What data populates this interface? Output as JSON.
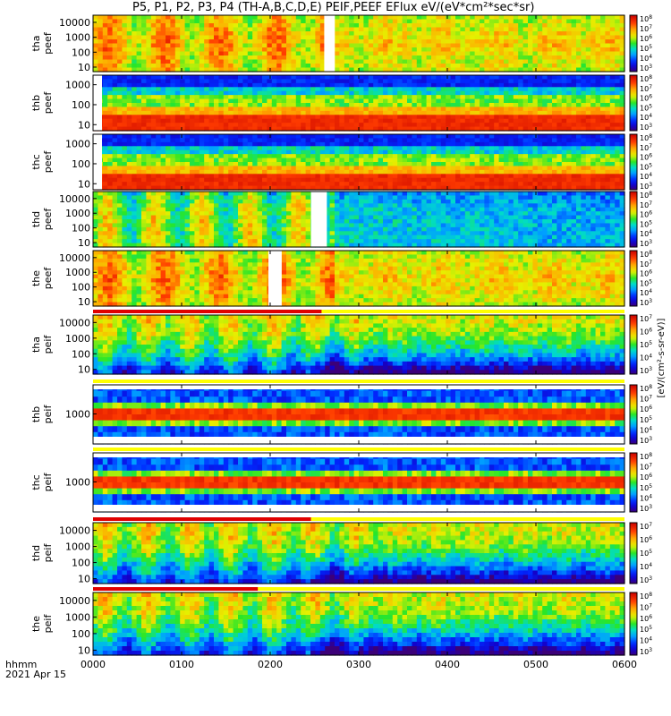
{
  "title": "P5, P1, P2, P3, P4 (TH-A,B,C,D,E) PEIF,PEEF EFlux eV/(eV*cm²*sec*sr)",
  "time_axis": {
    "label_row1": "hhmm",
    "label_row2": "2021 Apr 15",
    "ticks": [
      "0000",
      "0100",
      "0200",
      "0300",
      "0400",
      "0500",
      "0600"
    ]
  },
  "colorbar_label": "[eV/(cm²-s-sr-eV)]",
  "chart_data": [
    {
      "type": "heatmap",
      "ylabel": [
        "tha",
        "peef"
      ],
      "yticks": [
        "10000",
        "1000",
        "100",
        "10"
      ],
      "ylog": true,
      "ylim": [
        5,
        30000
      ],
      "zlog": true,
      "ztick_exps": [
        "8",
        "7",
        "6",
        "5",
        "4",
        "3"
      ],
      "gap": [
        0.435,
        0.455
      ],
      "bar": null
    },
    {
      "type": "heatmap",
      "ylabel": [
        "thb",
        "peef"
      ],
      "yticks": [
        "1000",
        "100",
        "10"
      ],
      "ylog": true,
      "ylim": [
        5,
        3000
      ],
      "zlog": true,
      "ztick_exps": [
        "8",
        "7",
        "6",
        "5",
        "4",
        "3"
      ],
      "gap": null,
      "bar": null
    },
    {
      "type": "heatmap",
      "ylabel": [
        "thc",
        "peef"
      ],
      "yticks": [
        "1000",
        "100",
        "10"
      ],
      "ylog": true,
      "ylim": [
        5,
        3000
      ],
      "zlog": true,
      "ztick_exps": [
        "8",
        "7",
        "6",
        "5",
        "4",
        "3"
      ],
      "gap": null,
      "bar": null
    },
    {
      "type": "heatmap",
      "ylabel": [
        "thd",
        "peef"
      ],
      "yticks": [
        "10000",
        "1000",
        "100",
        "10"
      ],
      "ylog": true,
      "ylim": [
        5,
        30000
      ],
      "zlog": true,
      "ztick_exps": [
        "8",
        "7",
        "6",
        "5",
        "4",
        "3"
      ],
      "gap": [
        0.41,
        0.44
      ],
      "bar": null
    },
    {
      "type": "heatmap",
      "ylabel": [
        "the",
        "peef"
      ],
      "yticks": [
        "10000",
        "1000",
        "100",
        "10"
      ],
      "ylog": true,
      "ylim": [
        5,
        30000
      ],
      "zlog": true,
      "ztick_exps": [
        "8",
        "7",
        "6",
        "5",
        "4",
        "3"
      ],
      "gap": [
        0.33,
        0.355
      ],
      "bar": null
    },
    {
      "type": "heatmap",
      "ylabel": [
        "tha",
        "peif"
      ],
      "yticks": [
        "10000",
        "1000",
        "100",
        "10"
      ],
      "ylog": true,
      "ylim": [
        5,
        30000
      ],
      "zlog": true,
      "ztick_exps": [
        "7",
        "6",
        "5",
        "4",
        "3"
      ],
      "gap": null,
      "bar": [
        0.0,
        0.43
      ]
    },
    {
      "type": "heatmap",
      "ylabel": [
        "thb",
        "peif"
      ],
      "yticks": [
        "1000"
      ],
      "ylog": true,
      "ylim": [
        30,
        30000
      ],
      "zlog": true,
      "ztick_exps": [
        "8",
        "7",
        "6",
        "5",
        "4",
        "3"
      ],
      "gap": null,
      "bar": null
    },
    {
      "type": "heatmap",
      "ylabel": [
        "thc",
        "peif"
      ],
      "yticks": [
        "1000"
      ],
      "ylog": true,
      "ylim": [
        30,
        30000
      ],
      "zlog": true,
      "ztick_exps": [
        "8",
        "7",
        "6",
        "5",
        "4",
        "3"
      ],
      "gap": null,
      "bar": null
    },
    {
      "type": "heatmap",
      "ylabel": [
        "thd",
        "peif"
      ],
      "yticks": [
        "10000",
        "1000",
        "100",
        "10"
      ],
      "ylog": true,
      "ylim": [
        5,
        30000
      ],
      "zlog": true,
      "ztick_exps": [
        "7",
        "6",
        "5",
        "4",
        "3"
      ],
      "gap": null,
      "bar": [
        0.0,
        0.41
      ]
    },
    {
      "type": "heatmap",
      "ylabel": [
        "the",
        "peif"
      ],
      "yticks": [
        "10000",
        "1000",
        "100",
        "10"
      ],
      "ylog": true,
      "ylim": [
        5,
        30000
      ],
      "zlog": true,
      "ztick_exps": [
        "8",
        "7",
        "6",
        "5",
        "4",
        "3"
      ],
      "gap": null,
      "bar": [
        0.0,
        0.31
      ]
    }
  ]
}
